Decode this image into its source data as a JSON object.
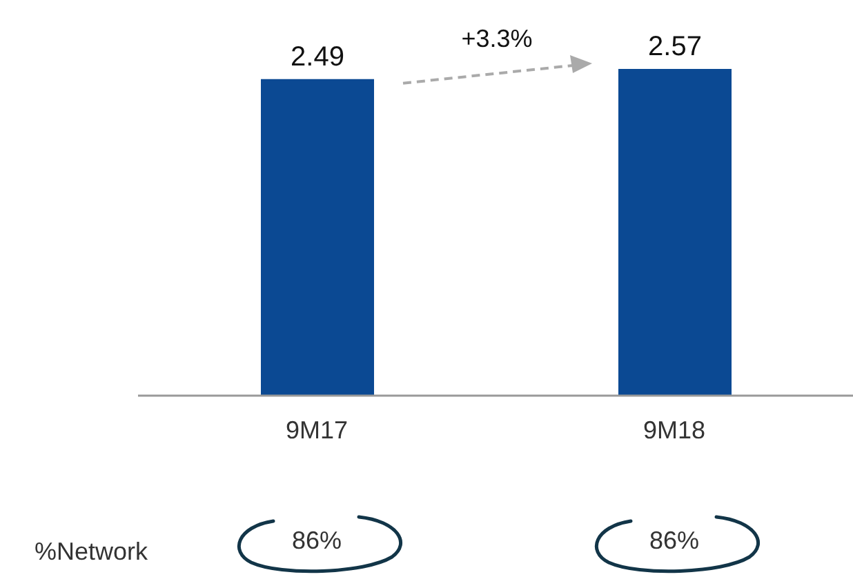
{
  "chart_data": {
    "type": "bar",
    "categories": [
      "9M17",
      "9M18"
    ],
    "values": [
      2.49,
      2.57
    ],
    "color": "#0b4993",
    "data_labels": true,
    "annotations": [
      "+3.3%",
      "%Network",
      "86%",
      "86%"
    ]
  }
}
